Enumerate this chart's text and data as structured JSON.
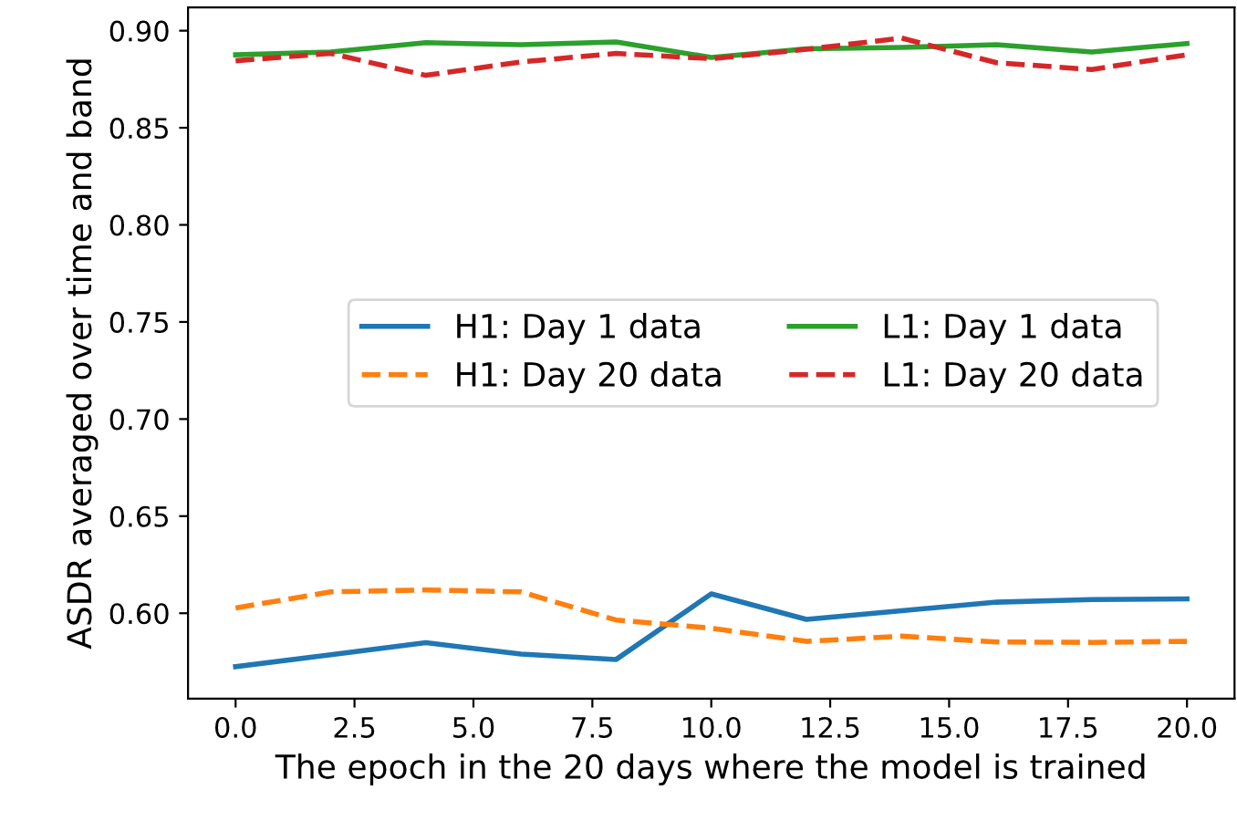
{
  "chart_data": {
    "type": "line",
    "xlabel": "The epoch in the 20 days where the model is trained",
    "ylabel": "ASDR averaged over time and band",
    "x": [
      0,
      2,
      4,
      6,
      8,
      10,
      12,
      14,
      16,
      18,
      20
    ],
    "xlim": [
      -1,
      21
    ],
    "xticks": [
      {
        "value": 0,
        "label": "0.0"
      },
      {
        "value": 2.5,
        "label": "2.5"
      },
      {
        "value": 5,
        "label": "5.0"
      },
      {
        "value": 7.5,
        "label": "7.5"
      },
      {
        "value": 10,
        "label": "10.0"
      },
      {
        "value": 12.5,
        "label": "12.5"
      },
      {
        "value": 15,
        "label": "15.0"
      },
      {
        "value": 17.5,
        "label": "17.5"
      },
      {
        "value": 20,
        "label": "20.0"
      }
    ],
    "ylim": [
      0.556,
      0.912
    ],
    "yticks": [
      {
        "value": 0.6,
        "label": "0.60"
      },
      {
        "value": 0.65,
        "label": "0.65"
      },
      {
        "value": 0.7,
        "label": "0.70"
      },
      {
        "value": 0.75,
        "label": "0.75"
      },
      {
        "value": 0.8,
        "label": "0.80"
      },
      {
        "value": 0.85,
        "label": "0.85"
      },
      {
        "value": 0.9,
        "label": "0.90"
      }
    ],
    "grid": false,
    "legend": "center",
    "series": [
      {
        "name": "H1: Day 1 data",
        "color": "#1f77b4",
        "line_style": "solid",
        "values": [
          0.5725,
          0.5786,
          0.5848,
          0.579,
          0.5762,
          0.61,
          0.5968,
          0.6013,
          0.6057,
          0.607,
          0.6074
        ]
      },
      {
        "name": "H1: Day 20 data",
        "color": "#ff7f0e",
        "line_style": "dashed",
        "values": [
          0.6027,
          0.611,
          0.612,
          0.611,
          0.5965,
          0.5923,
          0.5855,
          0.5882,
          0.5852,
          0.585,
          0.5855
        ]
      },
      {
        "name": "L1: Day 1 data",
        "color": "#2ca02c",
        "line_style": "solid",
        "values": [
          0.8876,
          0.889,
          0.8938,
          0.8928,
          0.8942,
          0.8862,
          0.8907,
          0.8914,
          0.8928,
          0.889,
          0.8934
        ]
      },
      {
        "name": "L1: Day 20 data",
        "color": "#d62728",
        "line_style": "dashed",
        "values": [
          0.8845,
          0.8883,
          0.877,
          0.8839,
          0.8883,
          0.8856,
          0.8904,
          0.8962,
          0.8835,
          0.88,
          0.8876
        ]
      }
    ]
  }
}
